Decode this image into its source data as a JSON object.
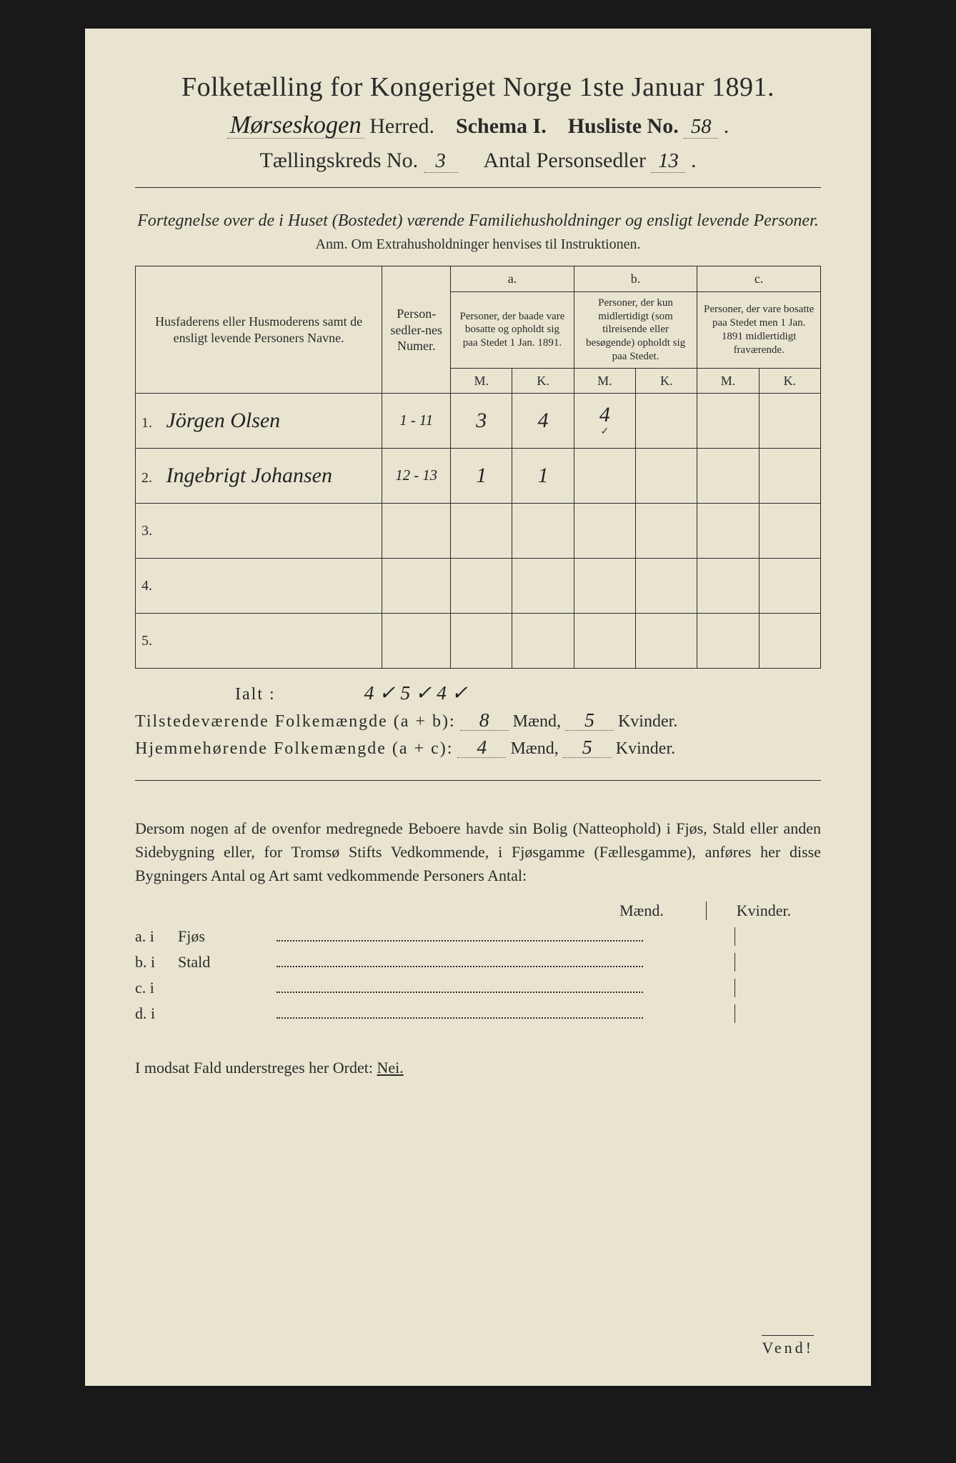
{
  "title": "Folketælling for Kongeriget Norge 1ste Januar 1891.",
  "herred_hw": "Mørseskogen",
  "herred_label": "Herred.",
  "schema_label": "Schema I.",
  "husliste_label": "Husliste No.",
  "husliste_no": "58",
  "kreds_label": "Tællingskreds No.",
  "kreds_no": "3",
  "antal_label": "Antal Personsedler",
  "antal_no": "13",
  "section_note": "Fortegnelse over de i Huset (Bostedet) værende Familiehusholdninger og ensligt levende Personer.",
  "anm": "Anm.  Om Extrahusholdninger henvises til Instruktionen.",
  "table": {
    "col_name": "Husfaderens eller Husmoderens samt de ensligt levende Personers Navne.",
    "col_num": "Person-sedler-nes Numer.",
    "col_a_top": "a.",
    "col_a": "Personer, der baade vare bosatte og opholdt sig paa Stedet 1 Jan. 1891.",
    "col_b_top": "b.",
    "col_b": "Personer, der kun midlertidigt (som tilreisende eller besøgende) opholdt sig paa Stedet.",
    "col_c_top": "c.",
    "col_c": "Personer, der vare bosatte paa Stedet men 1 Jan. 1891 midlertidigt fraværende.",
    "M": "M.",
    "K": "K.",
    "rows": [
      {
        "n": "1.",
        "name": "Jörgen Olsen",
        "num": "1 - 11",
        "aM": "3",
        "aK": "4",
        "bM": "4",
        "bK": "",
        "cM": "",
        "cK": ""
      },
      {
        "n": "2.",
        "name": "Ingebrigt Johansen",
        "num": "12 - 13",
        "aM": "1",
        "aK": "1",
        "bM": "",
        "bK": "",
        "cM": "",
        "cK": ""
      },
      {
        "n": "3.",
        "name": "",
        "num": "",
        "aM": "",
        "aK": "",
        "bM": "",
        "bK": "",
        "cM": "",
        "cK": ""
      },
      {
        "n": "4.",
        "name": "",
        "num": "",
        "aM": "",
        "aK": "",
        "bM": "",
        "bK": "",
        "cM": "",
        "cK": ""
      },
      {
        "n": "5.",
        "name": "",
        "num": "",
        "aM": "",
        "aK": "",
        "bM": "",
        "bK": "",
        "cM": "",
        "cK": ""
      }
    ],
    "checkrow": "✓"
  },
  "ialt_label": "Ialt :",
  "ialt_hw": "4 ✓   5 ✓   4 ✓",
  "sum1_label": "Tilstedeværende Folkemængde (a + b):",
  "sum1_m": "8",
  "sum1_k": "5",
  "sum2_label": "Hjemmehørende Folkemængde (a + c):",
  "sum2_m": "4",
  "sum2_k": "5",
  "maend": "Mænd,",
  "kvinder": "Kvinder.",
  "para": "Dersom nogen af de ovenfor medregnede Beboere havde sin Bolig (Natteophold) i Fjøs, Stald eller anden Sidebygning eller, for Tromsø Stifts Vedkommende, i Fjøsgamme (Fællesgamme), anføres her disse Bygningers Antal og Art samt vedkommende Personers Antal:",
  "mk_m": "Mænd.",
  "mk_k": "Kvinder.",
  "bygn": [
    {
      "lbl": "a.  i",
      "name": "Fjøs"
    },
    {
      "lbl": "b.  i",
      "name": "Stald"
    },
    {
      "lbl": "c.  i",
      "name": ""
    },
    {
      "lbl": "d.  i",
      "name": ""
    }
  ],
  "nei_line": "I modsat Fald understreges her Ordet:",
  "nei": "Nei.",
  "vend": "Vend!",
  "colors": {
    "paper": "#e8e4d0",
    "ink": "#2a2a2a",
    "bg": "#1a1a1a"
  }
}
